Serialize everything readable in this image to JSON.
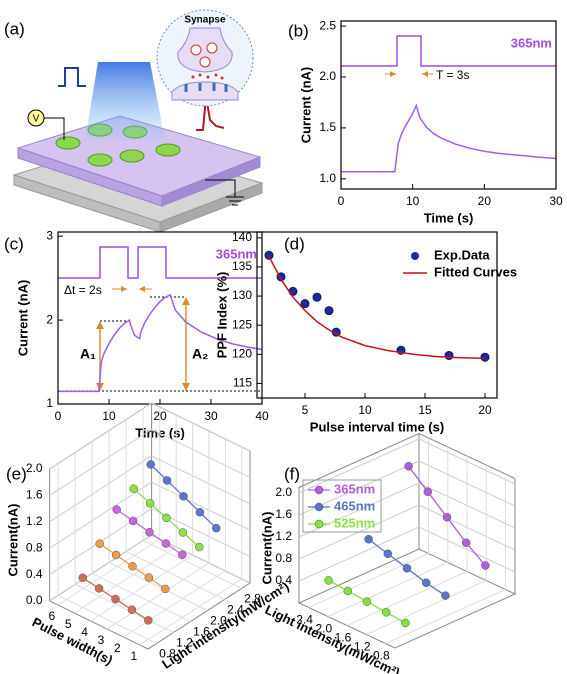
{
  "panel_a": {
    "label": "(a)",
    "synapse_label": "Synapse",
    "voltage_label": "V"
  },
  "chart_data": [
    {
      "panel": "(b)",
      "type": "line",
      "color": "#a35ce6",
      "x": [
        0,
        2,
        4,
        6,
        7.5,
        8,
        8.5,
        9,
        9.5,
        10,
        10.5,
        11,
        12,
        13,
        14,
        16,
        18,
        20,
        22,
        25,
        28,
        30
      ],
      "values": [
        1.07,
        1.07,
        1.07,
        1.07,
        1.07,
        1.35,
        1.45,
        1.52,
        1.58,
        1.64,
        1.72,
        1.6,
        1.5,
        1.44,
        1.4,
        1.34,
        1.3,
        1.27,
        1.25,
        1.23,
        1.21,
        1.2
      ],
      "xlim": [
        0,
        30
      ],
      "ylim": [
        0.9,
        2.55
      ],
      "xticks": [
        0,
        10,
        20,
        30
      ],
      "yticks": [
        {
          "value": 1,
          "label": "1.0"
        },
        1.5,
        {
          "value": 2,
          "label": "2.0"
        },
        2.5
      ],
      "xlabel": "Time (s)",
      "ylabel": "Current (nA)",
      "annotations": [
        "365nm",
        "T = 3s"
      ]
    },
    {
      "panel": "(c)",
      "type": "line",
      "color": "#a35ce6",
      "x": [
        0,
        4,
        8,
        8.5,
        9,
        10,
        11,
        12,
        13,
        14,
        14.2,
        15,
        16,
        16.2,
        17,
        18,
        19,
        20,
        21,
        22,
        23,
        25,
        28,
        31,
        34,
        37,
        40
      ],
      "values": [
        1.15,
        1.15,
        1.15,
        1.5,
        1.6,
        1.72,
        1.82,
        1.9,
        1.96,
        2.0,
        1.95,
        1.82,
        1.78,
        1.85,
        1.97,
        2.07,
        2.15,
        2.22,
        2.27,
        2.3,
        2.12,
        1.98,
        1.86,
        1.78,
        1.72,
        1.68,
        1.65
      ],
      "xlim": [
        0,
        40
      ],
      "ylim": [
        1,
        3.05
      ],
      "xticks": [
        0,
        10,
        20,
        30,
        40
      ],
      "yticks": [
        1,
        2,
        3
      ],
      "xlabel": "Time (s)",
      "ylabel": "Current (nA)",
      "annotations": [
        "365nm",
        "Δt = 2s",
        "A₁",
        "A₂"
      ]
    },
    {
      "panel": "(d)",
      "type": "scatter",
      "series": [
        {
          "name": "Exp.Data",
          "color": "#1d2a9c",
          "mode": "markers",
          "x": [
            2,
            3,
            4,
            5,
            6,
            7,
            7.6,
            13,
            17,
            20
          ],
          "values": [
            137,
            133.3,
            130.8,
            128.7,
            129.8,
            127.5,
            123.8,
            120.7,
            119.8,
            119.5
          ]
        },
        {
          "name": "Fitted Curves",
          "color": "#c3121c",
          "mode": "line",
          "x": [
            2,
            3,
            4,
            5,
            6,
            7,
            8,
            10,
            12,
            14,
            16,
            18,
            20
          ],
          "values": [
            136.8,
            132.9,
            129.8,
            127.5,
            125.6,
            124.2,
            123,
            121.5,
            120.6,
            120,
            119.6,
            119.4,
            119.3
          ]
        }
      ],
      "xlim": [
        1,
        21
      ],
      "ylim": [
        112.5,
        141
      ],
      "xticks": [
        5,
        10,
        15,
        20
      ],
      "yticks": [
        115,
        120,
        125,
        130,
        135,
        140
      ],
      "xlabel": "Pulse interval time (s)",
      "ylabel": "PPF Index (%)"
    },
    {
      "panel": "(e)",
      "type": "scatter3d",
      "x": [
        5,
        4,
        3,
        2,
        1
      ],
      "series": [
        {
          "y": 0.8,
          "color": "#d46a5a",
          "values": [
            0.45,
            0.41,
            0.37,
            0.33,
            0.29
          ]
        },
        {
          "y": 1.2,
          "color": "#e6a050",
          "values": [
            0.8,
            0.75,
            0.7,
            0.65,
            0.6
          ]
        },
        {
          "y": 1.6,
          "color": "#c468d8",
          "values": [
            1.15,
            1.1,
            1.05,
            1.0,
            0.95
          ]
        },
        {
          "y": 2.0,
          "color": "#8be04a",
          "values": [
            1.3,
            1.2,
            1.1,
            1.0,
            0.9
          ]
        },
        {
          "y": 2.4,
          "color": "#5878c8",
          "values": [
            1.5,
            1.38,
            1.26,
            1.14,
            1.02
          ]
        }
      ],
      "xlim": [
        0.5,
        6.5
      ],
      "ylim": [
        0.6,
        3.0
      ],
      "zlim": [
        0,
        2
      ],
      "xticks": [
        6,
        5,
        4,
        3,
        2,
        1
      ],
      "yticks": [
        0.8,
        1.2,
        1.6,
        {
          "value": 2,
          "label": "2.0"
        },
        2.4,
        2.8
      ],
      "zticks": [
        {
          "value": 0,
          "label": "0.0"
        },
        0.4,
        0.8,
        1.2,
        1.6,
        {
          "value": 2,
          "label": "2.0"
        }
      ],
      "xlabel": "Pulse width(s)",
      "ylabel": "Light intensity(mW/cm²)",
      "zlabel": "Current(nA)"
    },
    {
      "panel": "(f)",
      "type": "scatter3d",
      "x": [
        2.4,
        2.0,
        1.6,
        1.2,
        0.8
      ],
      "series": [
        {
          "name": "365nm",
          "color": "#b05ee0",
          "values": [
            1.75,
            1.45,
            1.15,
            0.85,
            0.6
          ]
        },
        {
          "name": "465nm",
          "color": "#5a76c8",
          "values": [
            0.75,
            0.65,
            0.55,
            0.45,
            0.38
          ]
        },
        {
          "name": "525nm",
          "color": "#86e040",
          "values": [
            0.33,
            0.3,
            0.27,
            0.24,
            0.21
          ]
        }
      ],
      "xlim": [
        0.6,
        2.6
      ],
      "zlim": [
        0,
        2.1
      ],
      "xticks": [
        2.4,
        {
          "value": 2,
          "label": "2.0"
        },
        1.6,
        1.2,
        0.8
      ],
      "zticks": [
        0.4,
        0.8,
        1.2,
        1.6,
        {
          "value": 2,
          "label": "2.0"
        }
      ],
      "xlabel": "Light intensity(mW/cm²)",
      "zlabel": "Current(nA)",
      "legend": "upper left"
    }
  ]
}
